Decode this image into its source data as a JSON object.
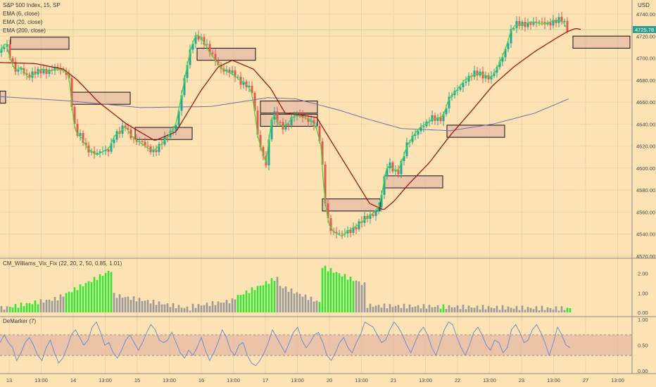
{
  "chart_data": {
    "type": "candlestick",
    "title": "S&P 500 Index, 15, SP",
    "currency": "USD",
    "last_price": "4725.78",
    "price_ylim": [
      4520,
      4740
    ],
    "price_ticks": [
      "4740.00",
      "4720.00",
      "4700.00",
      "4680.00",
      "4660.00",
      "4640.00",
      "4620.00",
      "4600.00",
      "4580.00",
      "4560.00",
      "4540.00",
      "4520.00"
    ],
    "x_ticks": [
      "13",
      "13:00",
      "14",
      "13:00",
      "15",
      "13:00",
      "16",
      "13:00",
      "17",
      "13:00",
      "20",
      "13:00",
      "21",
      "13:00",
      "22",
      "13:00",
      "23",
      "13:00",
      "27",
      "13:00"
    ],
    "legend": [
      "EMA (6, close)",
      "EMA (20, close)",
      "EMA (200, close)"
    ],
    "ema_colors": {
      "ema6": "#3fdc3f",
      "ema20": "#9b1a0a",
      "ema200": "#6f6fa8"
    },
    "close_path": [
      [
        0,
        4705
      ],
      [
        8,
        4715
      ],
      [
        14,
        4700
      ],
      [
        22,
        4688
      ],
      [
        30,
        4692
      ],
      [
        40,
        4682
      ],
      [
        50,
        4686
      ],
      [
        60,
        4690
      ],
      [
        70,
        4688
      ],
      [
        80,
        4690
      ],
      [
        90,
        4689
      ],
      [
        97,
        4686
      ],
      [
        100,
        4672
      ],
      [
        103,
        4650
      ],
      [
        106,
        4637
      ],
      [
        110,
        4630
      ],
      [
        116,
        4628
      ],
      [
        122,
        4620
      ],
      [
        130,
        4615
      ],
      [
        138,
        4612
      ],
      [
        146,
        4615
      ],
      [
        155,
        4618
      ],
      [
        163,
        4630
      ],
      [
        170,
        4632
      ],
      [
        178,
        4638
      ],
      [
        186,
        4630
      ],
      [
        194,
        4625
      ],
      [
        202,
        4622
      ],
      [
        210,
        4618
      ],
      [
        218,
        4616
      ],
      [
        226,
        4620
      ],
      [
        234,
        4625
      ],
      [
        242,
        4632
      ],
      [
        250,
        4640
      ],
      [
        256,
        4660
      ],
      [
        262,
        4680
      ],
      [
        268,
        4700
      ],
      [
        274,
        4715
      ],
      [
        280,
        4722
      ],
      [
        286,
        4718
      ],
      [
        292,
        4712
      ],
      [
        298,
        4705
      ],
      [
        304,
        4700
      ],
      [
        310,
        4695
      ],
      [
        316,
        4690
      ],
      [
        322,
        4688
      ],
      [
        328,
        4686
      ],
      [
        334,
        4684
      ],
      [
        340,
        4680
      ],
      [
        346,
        4678
      ],
      [
        352,
        4675
      ],
      [
        358,
        4668
      ],
      [
        362,
        4650
      ],
      [
        366,
        4630
      ],
      [
        370,
        4620
      ],
      [
        374,
        4612
      ],
      [
        378,
        4605
      ],
      [
        382,
        4625
      ],
      [
        386,
        4645
      ],
      [
        390,
        4648
      ],
      [
        396,
        4640
      ],
      [
        402,
        4638
      ],
      [
        408,
        4640
      ],
      [
        414,
        4645
      ],
      [
        420,
        4648
      ],
      [
        426,
        4647
      ],
      [
        432,
        4646
      ],
      [
        438,
        4645
      ],
      [
        444,
        4642
      ],
      [
        450,
        4635
      ],
      [
        456,
        4620
      ],
      [
        460,
        4580
      ],
      [
        464,
        4560
      ],
      [
        468,
        4548
      ],
      [
        474,
        4542
      ],
      [
        480,
        4540
      ],
      [
        486,
        4538
      ],
      [
        492,
        4542
      ],
      [
        500,
        4545
      ],
      [
        508,
        4548
      ],
      [
        516,
        4552
      ],
      [
        524,
        4556
      ],
      [
        532,
        4560
      ],
      [
        538,
        4565
      ],
      [
        543,
        4578
      ],
      [
        548,
        4598
      ],
      [
        554,
        4603
      ],
      [
        560,
        4598
      ],
      [
        566,
        4598
      ],
      [
        572,
        4608
      ],
      [
        578,
        4620
      ],
      [
        584,
        4626
      ],
      [
        590,
        4632
      ],
      [
        598,
        4638
      ],
      [
        606,
        4640
      ],
      [
        614,
        4645
      ],
      [
        622,
        4645
      ],
      [
        630,
        4648
      ],
      [
        636,
        4660
      ],
      [
        642,
        4666
      ],
      [
        648,
        4670
      ],
      [
        654,
        4675
      ],
      [
        660,
        4680
      ],
      [
        666,
        4682
      ],
      [
        674,
        4685
      ],
      [
        682,
        4686
      ],
      [
        690,
        4684
      ],
      [
        698,
        4682
      ],
      [
        706,
        4690
      ],
      [
        714,
        4702
      ],
      [
        720,
        4712
      ],
      [
        726,
        4725
      ],
      [
        732,
        4730
      ],
      [
        738,
        4730
      ],
      [
        746,
        4731
      ],
      [
        754,
        4733
      ],
      [
        762,
        4732
      ],
      [
        770,
        4731
      ],
      [
        778,
        4732
      ],
      [
        786,
        4734
      ],
      [
        794,
        4734
      ],
      [
        800,
        4733
      ],
      [
        806,
        4726
      ]
    ],
    "ema200_path": [
      [
        0,
        4665
      ],
      [
        100,
        4661
      ],
      [
        200,
        4655
      ],
      [
        300,
        4656
      ],
      [
        380,
        4664
      ],
      [
        420,
        4663
      ],
      [
        480,
        4653
      ],
      [
        520,
        4645
      ],
      [
        570,
        4636
      ],
      [
        640,
        4634
      ],
      [
        700,
        4640
      ],
      [
        760,
        4650
      ],
      [
        808,
        4663
      ]
    ],
    "ema20_path": [
      [
        0,
        4696
      ],
      [
        50,
        4695
      ],
      [
        90,
        4690
      ],
      [
        110,
        4680
      ],
      [
        140,
        4660
      ],
      [
        180,
        4640
      ],
      [
        220,
        4625
      ],
      [
        250,
        4633
      ],
      [
        285,
        4670
      ],
      [
        310,
        4692
      ],
      [
        330,
        4698
      ],
      [
        360,
        4690
      ],
      [
        385,
        4672
      ],
      [
        405,
        4650
      ],
      [
        430,
        4648
      ],
      [
        450,
        4646
      ],
      [
        470,
        4625
      ],
      [
        500,
        4594
      ],
      [
        525,
        4568
      ],
      [
        545,
        4562
      ],
      [
        560,
        4570
      ],
      [
        580,
        4585
      ],
      [
        610,
        4605
      ],
      [
        640,
        4630
      ],
      [
        670,
        4652
      ],
      [
        700,
        4675
      ],
      [
        730,
        4692
      ],
      [
        760,
        4706
      ],
      [
        790,
        4718
      ],
      [
        806,
        4724
      ],
      [
        818,
        4727
      ],
      [
        826,
        4726
      ]
    ],
    "zones": [
      {
        "x1": 15,
        "x2": 98,
        "top": 4719,
        "bottom": 4708
      },
      {
        "x1": 0,
        "x2": 8,
        "top": 4670,
        "bottom": 4659
      },
      {
        "x1": 102,
        "x2": 185,
        "top": 4669,
        "bottom": 4658
      },
      {
        "x1": 192,
        "x2": 273,
        "top": 4637,
        "bottom": 4626
      },
      {
        "x1": 280,
        "x2": 363,
        "top": 4709,
        "bottom": 4698
      },
      {
        "x1": 370,
        "x2": 451,
        "top": 4661,
        "bottom": 4650
      },
      {
        "x1": 370,
        "x2": 451,
        "top": 4649,
        "bottom": 4638
      },
      {
        "x1": 458,
        "x2": 540,
        "top": 4572,
        "bottom": 4561
      },
      {
        "x1": 547,
        "x2": 629,
        "top": 4593,
        "bottom": 4582
      },
      {
        "x1": 635,
        "x2": 717,
        "top": 4639,
        "bottom": 4628
      },
      {
        "x1": 814,
        "x2": 895,
        "top": 4720,
        "bottom": 4709
      }
    ],
    "vix": {
      "label": "CM_Williams_Vix_Fix (22, 20, 2, 50, 0.85, 1.01)",
      "ylim": [
        0,
        2.6
      ],
      "ticks": [
        "2.00",
        "1.00",
        "0.00"
      ],
      "colors": {
        "high": "#33e633",
        "normal": "#9a9a9a"
      },
      "segments": [
        {
          "x1": 0,
          "x2": 80,
          "v1": 0.2,
          "v2": 0.7
        },
        {
          "x1": 80,
          "x2": 160,
          "v1": 0.7,
          "v2": 2.2
        },
        {
          "x1": 160,
          "x2": 270,
          "v1": 0.9,
          "v2": 0.2
        },
        {
          "x1": 270,
          "x2": 330,
          "v1": 0.3,
          "v2": 0.6
        },
        {
          "x1": 330,
          "x2": 395,
          "v1": 0.7,
          "v2": 1.8
        },
        {
          "x1": 395,
          "x2": 455,
          "v1": 1.4,
          "v2": 0.5
        },
        {
          "x1": 455,
          "x2": 520,
          "v1": 2.4,
          "v2": 1.4
        },
        {
          "x1": 520,
          "x2": 810,
          "v1": 0.35,
          "v2": 0.2
        }
      ],
      "green_ranges": [
        [
          14,
          55
        ],
        [
          94,
          160
        ],
        [
          336,
          390
        ],
        [
          454,
          505
        ],
        [
          626,
          632
        ],
        [
          806,
          810
        ]
      ]
    },
    "demarker": {
      "label": "DeMarker (7)",
      "ylim": [
        0,
        1.0
      ],
      "ticks": [
        "1.00",
        "0.50",
        "0.00"
      ],
      "band": [
        0.3,
        0.7
      ],
      "color": "#6f8fd0",
      "values": [
        0.55,
        0.7,
        0.55,
        0.45,
        0.2,
        0.35,
        0.55,
        0.65,
        0.5,
        0.3,
        0.2,
        0.45,
        0.6,
        0.35,
        0.15,
        0.25,
        0.45,
        0.7,
        0.8,
        0.65,
        0.5,
        0.6,
        0.85,
        0.95,
        0.75,
        0.5,
        0.55,
        0.35,
        0.25,
        0.4,
        0.6,
        0.7,
        0.55,
        0.4,
        0.55,
        0.75,
        0.9,
        0.8,
        0.6,
        0.55,
        0.6,
        0.75,
        0.55,
        0.35,
        0.25,
        0.4,
        0.3,
        0.45,
        0.65,
        0.4,
        0.2,
        0.35,
        0.55,
        0.8,
        0.65,
        0.4,
        0.3,
        0.5,
        0.55,
        0.3,
        0.15,
        0.1,
        0.2,
        0.35,
        0.55,
        0.8,
        0.65,
        0.5,
        0.35,
        0.55,
        0.75,
        0.85,
        0.6,
        0.45,
        0.55,
        0.7,
        0.75,
        0.55,
        0.3,
        0.2,
        0.35,
        0.55,
        0.65,
        0.45,
        0.35,
        0.55,
        0.7,
        0.95,
        0.9,
        0.85,
        0.7,
        0.55,
        0.6,
        0.8,
        0.95,
        0.85,
        0.7,
        0.5,
        0.35,
        0.55,
        0.75,
        0.85,
        0.7,
        0.45,
        0.3,
        0.55,
        0.8,
        0.95,
        0.9,
        0.65,
        0.45,
        0.3,
        0.5,
        0.75,
        0.85,
        0.7,
        0.5,
        0.4,
        0.6,
        0.55,
        0.35,
        0.45,
        0.8,
        0.9,
        0.75,
        0.55,
        0.6,
        0.8,
        0.9,
        0.75,
        0.55,
        0.3,
        0.55,
        0.85,
        0.7,
        0.5,
        0.45
      ]
    }
  }
}
